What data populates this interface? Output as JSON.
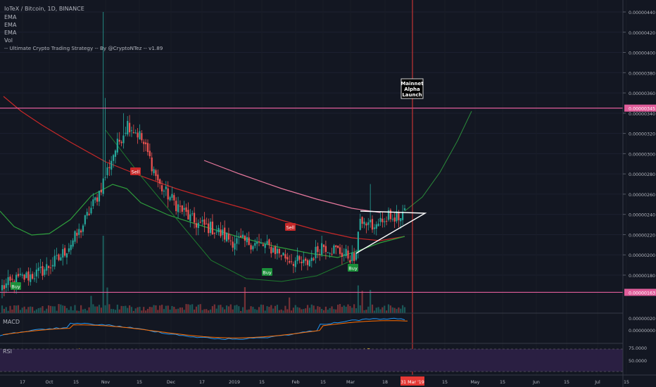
{
  "header": {
    "symbol_line": "IoTeX / Bitcoin, 1D, BINANCE",
    "indicators": [
      "EMA",
      "EMA",
      "EMA",
      "Vol",
      "-- Ultimate Crypto Trading Strategy -- By @CryptoNTez -- v1.89"
    ]
  },
  "panes": {
    "macd_label": "MACD",
    "rsi_label": "RSI"
  },
  "annotation": {
    "text": [
      "Mainnet",
      "Alpha",
      "Launch"
    ]
  },
  "price_axis": {
    "ticks": [
      "0.00000440",
      "0.00000420",
      "0.00000400",
      "0.00000380",
      "0.00000360",
      "0.00000340",
      "0.00000320",
      "0.00000300",
      "0.00000280",
      "0.00000260",
      "0.00000240",
      "0.00000220",
      "0.00000200",
      "0.00000180"
    ],
    "tick_values": [
      440,
      420,
      400,
      380,
      360,
      340,
      320,
      300,
      280,
      260,
      240,
      220,
      200,
      180
    ],
    "resistance_label": "0.00000345",
    "resistance_value": 345,
    "support_label": "0.00000163",
    "support_value": 163
  },
  "macd_axis": {
    "ticks": [
      "0.00000020",
      "0.00000000"
    ]
  },
  "rsi_axis": {
    "ticks": [
      "75.0000",
      "50.0000"
    ]
  },
  "time_axis": {
    "labels": [
      "17",
      "Oct",
      "15",
      "Nov",
      "15",
      "Dec",
      "17",
      "2019",
      "15",
      "Feb",
      "15",
      "Mar",
      "18",
      "15",
      "May",
      "15",
      "Jun",
      "15",
      "Jul",
      "15"
    ],
    "cursor_label": "31 Mar '19"
  },
  "signals": [
    {
      "text": "Buy",
      "kind": "buy"
    },
    {
      "text": "Sell",
      "kind": "sell"
    },
    {
      "text": "Sell",
      "kind": "sell"
    },
    {
      "text": "Buy",
      "kind": "buy"
    },
    {
      "text": "Buy",
      "kind": "buy"
    }
  ],
  "colors": {
    "background": "#131722",
    "up": "#26a69a",
    "down": "#ef5350",
    "resistance": "#e05d9a",
    "ema_red": "#c62828",
    "ema_green": "#2e9e3c",
    "ema_pink": "#e8799e",
    "cursor": "#e53935",
    "buy": "#1b8f3a",
    "sell": "#c62828",
    "macd": "#2196f3",
    "signal": "#ff6d00",
    "rsi": "#c9a227"
  },
  "chart_data": {
    "type": "candlestick",
    "x": [
      "2018-09-14",
      "2018-09-24",
      "2018-10-04",
      "2018-10-14",
      "2018-10-24",
      "2018-11-03",
      "2018-11-13",
      "2018-11-23",
      "2018-12-03",
      "2018-12-13",
      "2018-12-23",
      "2019-01-02",
      "2019-01-12",
      "2019-01-22",
      "2019-02-01",
      "2019-02-11",
      "2019-02-21",
      "2019-03-03",
      "2019-03-13",
      "2019-03-23"
    ],
    "close": [
      168,
      178,
      185,
      215,
      270,
      322,
      255,
      232,
      226,
      210,
      212,
      198,
      188,
      212,
      198,
      188,
      189,
      222,
      232,
      240
    ],
    "resistance": 345,
    "support": 163,
    "ylim": [
      152,
      450
    ]
  }
}
